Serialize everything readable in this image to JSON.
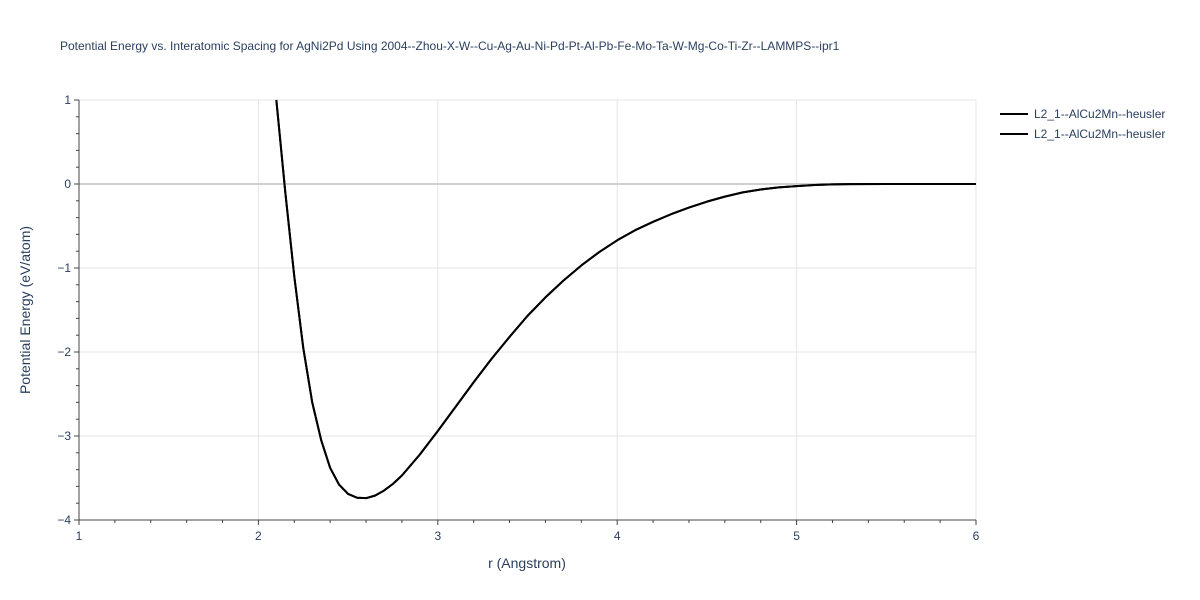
{
  "chart_data": {
    "type": "line",
    "title": "Potential Energy vs. Interatomic Spacing for AgNi2Pd Using 2004--Zhou-X-W--Cu-Ag-Au-Ni-Pd-Pt-Al-Pb-Fe-Mo-Ta-W-Mg-Co-Ti-Zr--LAMMPS--ipr1",
    "xlabel": "r (Angstrom)",
    "ylabel": "Potential Energy (eV/atom)",
    "xlim": [
      1,
      6
    ],
    "ylim": [
      -4,
      1
    ],
    "x_ticks": [
      "1",
      "2",
      "3",
      "4",
      "5",
      "6"
    ],
    "y_ticks": [
      "1",
      "0",
      "−1",
      "−2",
      "−3",
      "−4"
    ],
    "grid": true,
    "legend_position": "top-right",
    "series": [
      {
        "name": "L2_1--AlCu2Mn--heusler",
        "color": "#000000",
        "x": [
          2.1,
          2.15,
          2.2,
          2.25,
          2.3,
          2.35,
          2.4,
          2.45,
          2.5,
          2.55,
          2.6,
          2.65,
          2.7,
          2.75,
          2.8,
          2.9,
          3.0,
          3.1,
          3.2,
          3.3,
          3.4,
          3.5,
          3.6,
          3.7,
          3.8,
          3.9,
          4.0,
          4.1,
          4.2,
          4.3,
          4.4,
          4.5,
          4.6,
          4.7,
          4.8,
          4.9,
          5.0,
          5.1,
          5.2,
          5.3,
          5.5,
          5.8,
          6.0
        ],
        "y": [
          1.0,
          -0.1,
          -1.1,
          -1.95,
          -2.6,
          -3.05,
          -3.38,
          -3.58,
          -3.69,
          -3.735,
          -3.74,
          -3.71,
          -3.65,
          -3.57,
          -3.47,
          -3.22,
          -2.94,
          -2.65,
          -2.36,
          -2.08,
          -1.82,
          -1.57,
          -1.35,
          -1.15,
          -0.97,
          -0.81,
          -0.67,
          -0.55,
          -0.45,
          -0.36,
          -0.28,
          -0.21,
          -0.15,
          -0.1,
          -0.065,
          -0.04,
          -0.025,
          -0.012,
          -0.005,
          -0.002,
          0.0,
          0.0,
          0.0
        ]
      },
      {
        "name": "L2_1--AlCu2Mn--heusler",
        "color": "#000000",
        "x": [
          2.1,
          2.15,
          2.2,
          2.25,
          2.3,
          2.35,
          2.4,
          2.45,
          2.5,
          2.55,
          2.6,
          2.65,
          2.7,
          2.75,
          2.8,
          2.9,
          3.0,
          3.1,
          3.2,
          3.3,
          3.4,
          3.5,
          3.6,
          3.7,
          3.8,
          3.9,
          4.0,
          4.1,
          4.2,
          4.3,
          4.4,
          4.5,
          4.6,
          4.7,
          4.8,
          4.9,
          5.0,
          5.1,
          5.2,
          5.3,
          5.5,
          5.8,
          6.0
        ],
        "y": [
          1.0,
          -0.1,
          -1.1,
          -1.95,
          -2.6,
          -3.05,
          -3.38,
          -3.58,
          -3.69,
          -3.735,
          -3.74,
          -3.71,
          -3.65,
          -3.57,
          -3.47,
          -3.22,
          -2.94,
          -2.65,
          -2.36,
          -2.08,
          -1.82,
          -1.57,
          -1.35,
          -1.15,
          -0.97,
          -0.81,
          -0.67,
          -0.55,
          -0.45,
          -0.36,
          -0.28,
          -0.21,
          -0.15,
          -0.1,
          -0.065,
          -0.04,
          -0.025,
          -0.012,
          -0.005,
          -0.002,
          0.0,
          0.0,
          0.0
        ]
      }
    ]
  }
}
